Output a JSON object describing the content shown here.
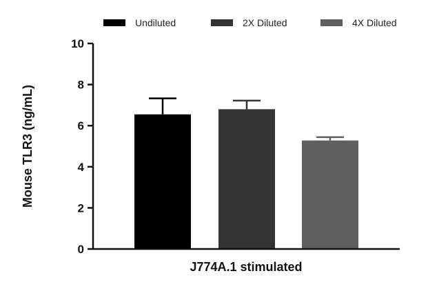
{
  "chart_data": {
    "type": "bar",
    "title": "",
    "xlabel": "J774A.1 stimulated",
    "ylabel": "Mouse TLR3 (ng/mL)",
    "ylim": [
      0,
      10
    ],
    "yticks": [
      "0",
      "2",
      "4",
      "6",
      "8",
      "10"
    ],
    "grid": false,
    "legend_position": "top",
    "series": [
      {
        "name": "Undiluted",
        "value": 6.55,
        "error": 0.78,
        "color": "#000000"
      },
      {
        "name": "2X Diluted",
        "value": 6.8,
        "error": 0.42,
        "color": "#333333"
      },
      {
        "name": "4X Diluted",
        "value": 5.28,
        "error": 0.16,
        "color": "#5f5f5f"
      }
    ]
  }
}
